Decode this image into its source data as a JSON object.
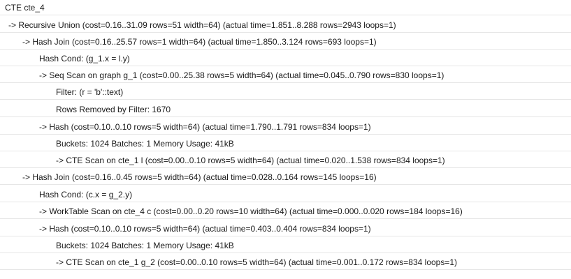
{
  "plan": {
    "lines": [
      "CTE cte_4",
      "-> Recursive Union  (cost=0.16..31.09 rows=51 width=64) (actual time=1.851..8.288 rows=2943 loops=1)",
      "-> Hash Join  (cost=0.16..25.57 rows=1 width=64) (actual time=1.850..3.124 rows=693 loops=1)",
      "Hash Cond: (g_1.x = l.y)",
      "-> Seq Scan on graph g_1  (cost=0.00..25.38 rows=5 width=64) (actual time=0.045..0.790 rows=830 loops=1)",
      "Filter: (r = 'b'::text)",
      "Rows Removed by Filter: 1670",
      "-> Hash  (cost=0.10..0.10 rows=5 width=64) (actual time=1.790..1.791 rows=834 loops=1)",
      "Buckets: 1024  Batches: 1  Memory Usage: 41kB",
      "-> CTE Scan on cte_1 l  (cost=0.00..0.10 rows=5 width=64) (actual time=0.020..1.538 rows=834 loops=1)",
      "-> Hash Join  (cost=0.16..0.45 rows=5 width=64) (actual time=0.028..0.164 rows=145 loops=16)",
      "Hash Cond: (c.x = g_2.y)",
      "-> WorkTable Scan on cte_4 c  (cost=0.00..0.20 rows=10 width=64) (actual time=0.000..0.020 rows=184 loops=16)",
      "-> Hash  (cost=0.10..0.10 rows=5 width=64) (actual time=0.403..0.404 rows=834 loops=1)",
      "Buckets: 1024  Batches: 1  Memory Usage: 41kB",
      "-> CTE Scan on cte_1 g_2  (cost=0.00..0.10 rows=5 width=64) (actual time=0.001..0.172 rows=834 loops=1)"
    ]
  }
}
